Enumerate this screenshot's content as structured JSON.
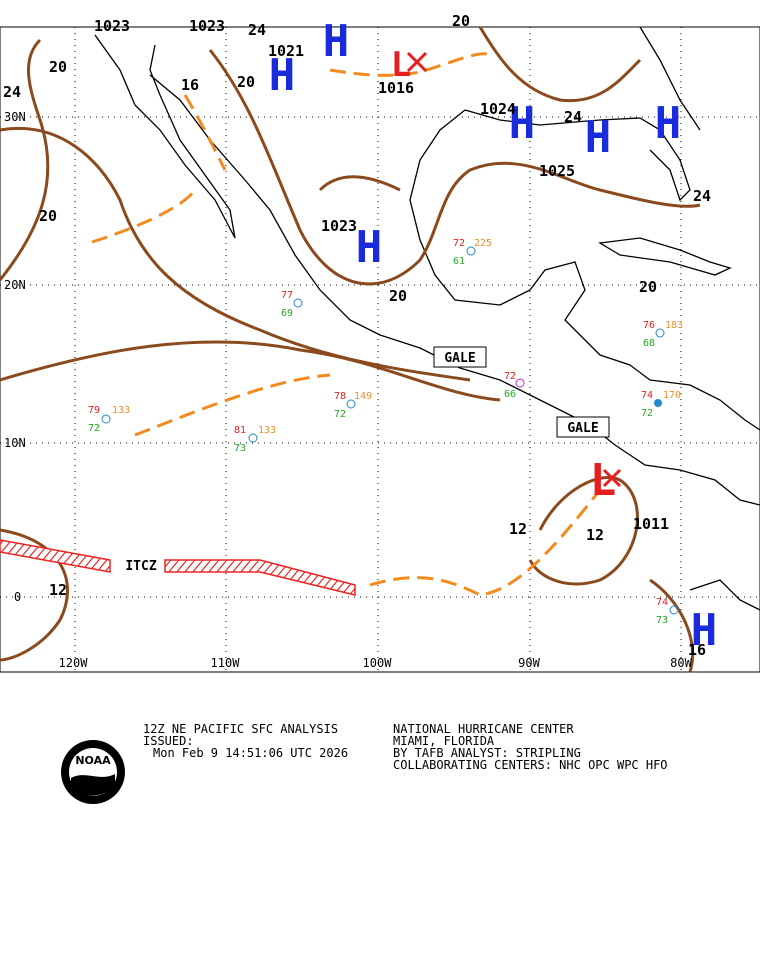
{
  "map": {
    "lat_labels": [
      "30N",
      "20N",
      "10N",
      "0"
    ],
    "lon_labels": [
      "120W",
      "110W",
      "100W",
      "90W",
      "80W"
    ],
    "highs": [
      {
        "symbol": "H",
        "pressure": "1023"
      },
      {
        "symbol": "H",
        "pressure": "1021"
      },
      {
        "symbol": "H",
        "pressure": "1024"
      },
      {
        "symbol": "H",
        "pressure": "1025"
      },
      {
        "symbol": "H"
      },
      {
        "symbol": "H"
      },
      {
        "symbol": "H"
      }
    ],
    "lows": [
      {
        "symbol": "L",
        "pressure": "1016"
      },
      {
        "symbol": "L"
      }
    ],
    "pressure_labels": [
      "1023",
      "1023",
      "1011"
    ],
    "isobar_labels": [
      "20",
      "24",
      "20",
      "16",
      "20",
      "24",
      "20",
      "20",
      "24",
      "24",
      "20",
      "12",
      "12",
      "12",
      "16"
    ],
    "annotations": [
      "GALE",
      "GALE",
      "ITCZ"
    ],
    "stations": [
      {
        "temp": "77",
        "dew": "69"
      },
      {
        "temp": "79",
        "dew": "72",
        "wind": "133"
      },
      {
        "temp": "81",
        "dew": "73",
        "wind": "133"
      },
      {
        "temp": "78",
        "dew": "72",
        "wind": "149"
      },
      {
        "temp": "72",
        "dew": "61",
        "wind": "225"
      },
      {
        "temp": "74",
        "dew": "72",
        "wind": "170"
      },
      {
        "temp": "76",
        "dew": "68",
        "wind": "183"
      },
      {
        "temp": "72",
        "dew": "66"
      },
      {
        "temp": "74",
        "dew": "73"
      }
    ]
  },
  "footer": {
    "product": "12Z NE PACIFIC SFC ANALYSIS",
    "issued": "ISSUED:",
    "time": "Mon Feb 9 14:51:06 UTC 2026",
    "center": "NATIONAL HURRICANE CENTER",
    "location": "MIAMI, FLORIDA",
    "analyst": "BY TAFB ANALYST: STRIPLING",
    "collaborating": "COLLABORATING CENTERS: NHC OPC WPC HFO",
    "logo": "NOAA"
  }
}
